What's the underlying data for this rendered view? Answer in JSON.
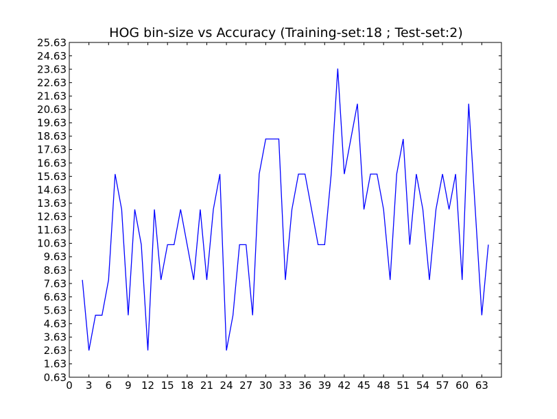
{
  "chart_data": {
    "type": "line",
    "title": "HOG bin-size vs Accuracy (Training-set:18 ; Test-set:2)",
    "xlabel": "",
    "ylabel": "",
    "xlim": [
      0,
      66
    ],
    "ylim": [
      0.63,
      25.63
    ],
    "x_ticks": [
      0,
      3,
      6,
      9,
      12,
      15,
      18,
      21,
      24,
      27,
      30,
      33,
      36,
      39,
      42,
      45,
      48,
      51,
      54,
      57,
      60,
      63
    ],
    "y_ticks": [
      0.63,
      1.63,
      2.63,
      3.63,
      4.63,
      5.63,
      6.63,
      7.63,
      8.63,
      9.63,
      10.63,
      11.63,
      12.63,
      13.63,
      14.63,
      15.63,
      16.63,
      17.63,
      18.63,
      19.63,
      20.63,
      21.63,
      22.63,
      23.63,
      24.63,
      25.63
    ],
    "grid": false,
    "line_color": "#0000ff",
    "series": [
      {
        "x": [
          2,
          3,
          4,
          5,
          6,
          7,
          8,
          9,
          10,
          11,
          12,
          13,
          14,
          15,
          16,
          17,
          18,
          19,
          20,
          21,
          22,
          23,
          24,
          25,
          26,
          27,
          28,
          29,
          30,
          31,
          32,
          33,
          34,
          35,
          36,
          37,
          38,
          39,
          40,
          41,
          42,
          43,
          44,
          45,
          46,
          47,
          48,
          49,
          50,
          51,
          52,
          53,
          54,
          55,
          56,
          57,
          58,
          59,
          60,
          61,
          62,
          63,
          64
        ],
        "y": [
          7.9,
          2.63,
          5.26,
          5.26,
          7.9,
          15.8,
          13.16,
          5.26,
          13.16,
          10.53,
          2.63,
          13.16,
          7.9,
          10.53,
          10.53,
          13.16,
          10.53,
          7.9,
          13.16,
          7.9,
          13.16,
          15.8,
          2.63,
          5.26,
          10.53,
          10.53,
          5.26,
          15.8,
          18.42,
          18.42,
          18.42,
          7.9,
          13.16,
          15.8,
          15.8,
          13.16,
          10.53,
          10.53,
          15.8,
          23.68,
          15.8,
          18.42,
          21.05,
          13.16,
          15.8,
          15.8,
          13.16,
          7.9,
          15.8,
          18.42,
          10.53,
          15.8,
          13.16,
          7.9,
          13.16,
          15.8,
          13.16,
          15.8,
          7.9,
          21.05,
          13.16,
          5.26,
          10.53
        ]
      }
    ]
  }
}
